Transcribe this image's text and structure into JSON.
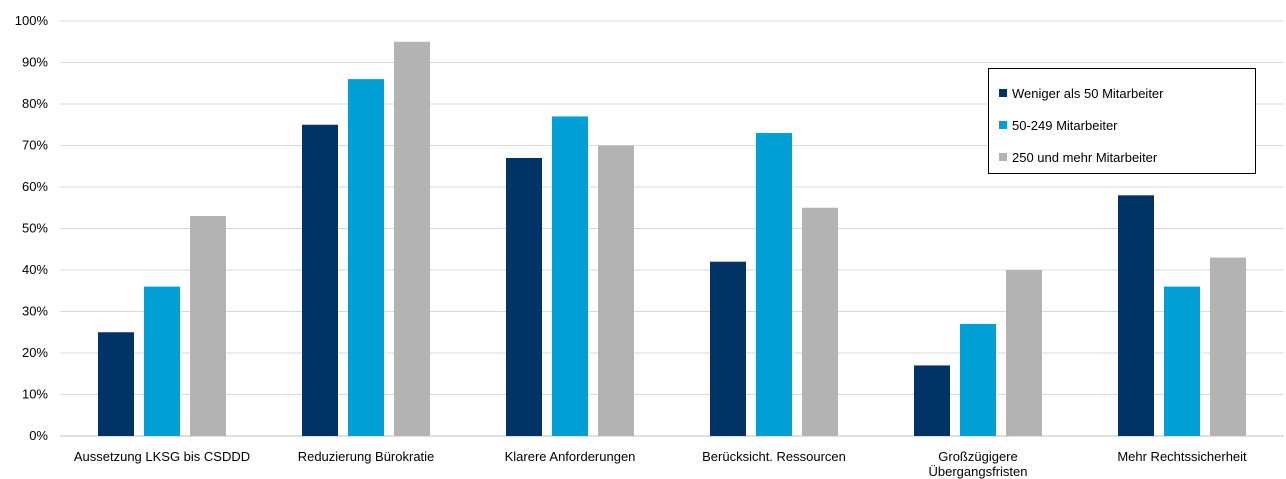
{
  "chart_data": {
    "type": "bar",
    "categories": [
      [
        "Aussetzung LKSG bis CSDDD"
      ],
      [
        "Reduzierung Bürokratie"
      ],
      [
        "Klarere Anforderungen"
      ],
      [
        "Berücksicht. Ressourcen"
      ],
      [
        "Großzügigere",
        "Übergangsfristen"
      ],
      [
        "Mehr Rechtssicherheit"
      ]
    ],
    "series": [
      {
        "name": "Weniger als 50 Mitarbeiter",
        "color": "#003366",
        "values": [
          25,
          75,
          67,
          42,
          17,
          58
        ]
      },
      {
        "name": "50-249 Mitarbeiter",
        "color": "#009FD6",
        "values": [
          36,
          86,
          77,
          73,
          27,
          36
        ]
      },
      {
        "name": "250 und mehr Mitarbeiter",
        "color": "#B3B3B3",
        "values": [
          53,
          95,
          70,
          55,
          40,
          43
        ]
      }
    ],
    "ylim": [
      0,
      100
    ],
    "yticks": [
      "0%",
      "10%",
      "20%",
      "30%",
      "40%",
      "50%",
      "60%",
      "70%",
      "80%",
      "90%",
      "100%"
    ],
    "grid": true,
    "legend_position": "top-right",
    "title": "",
    "xlabel": "",
    "ylabel": ""
  }
}
